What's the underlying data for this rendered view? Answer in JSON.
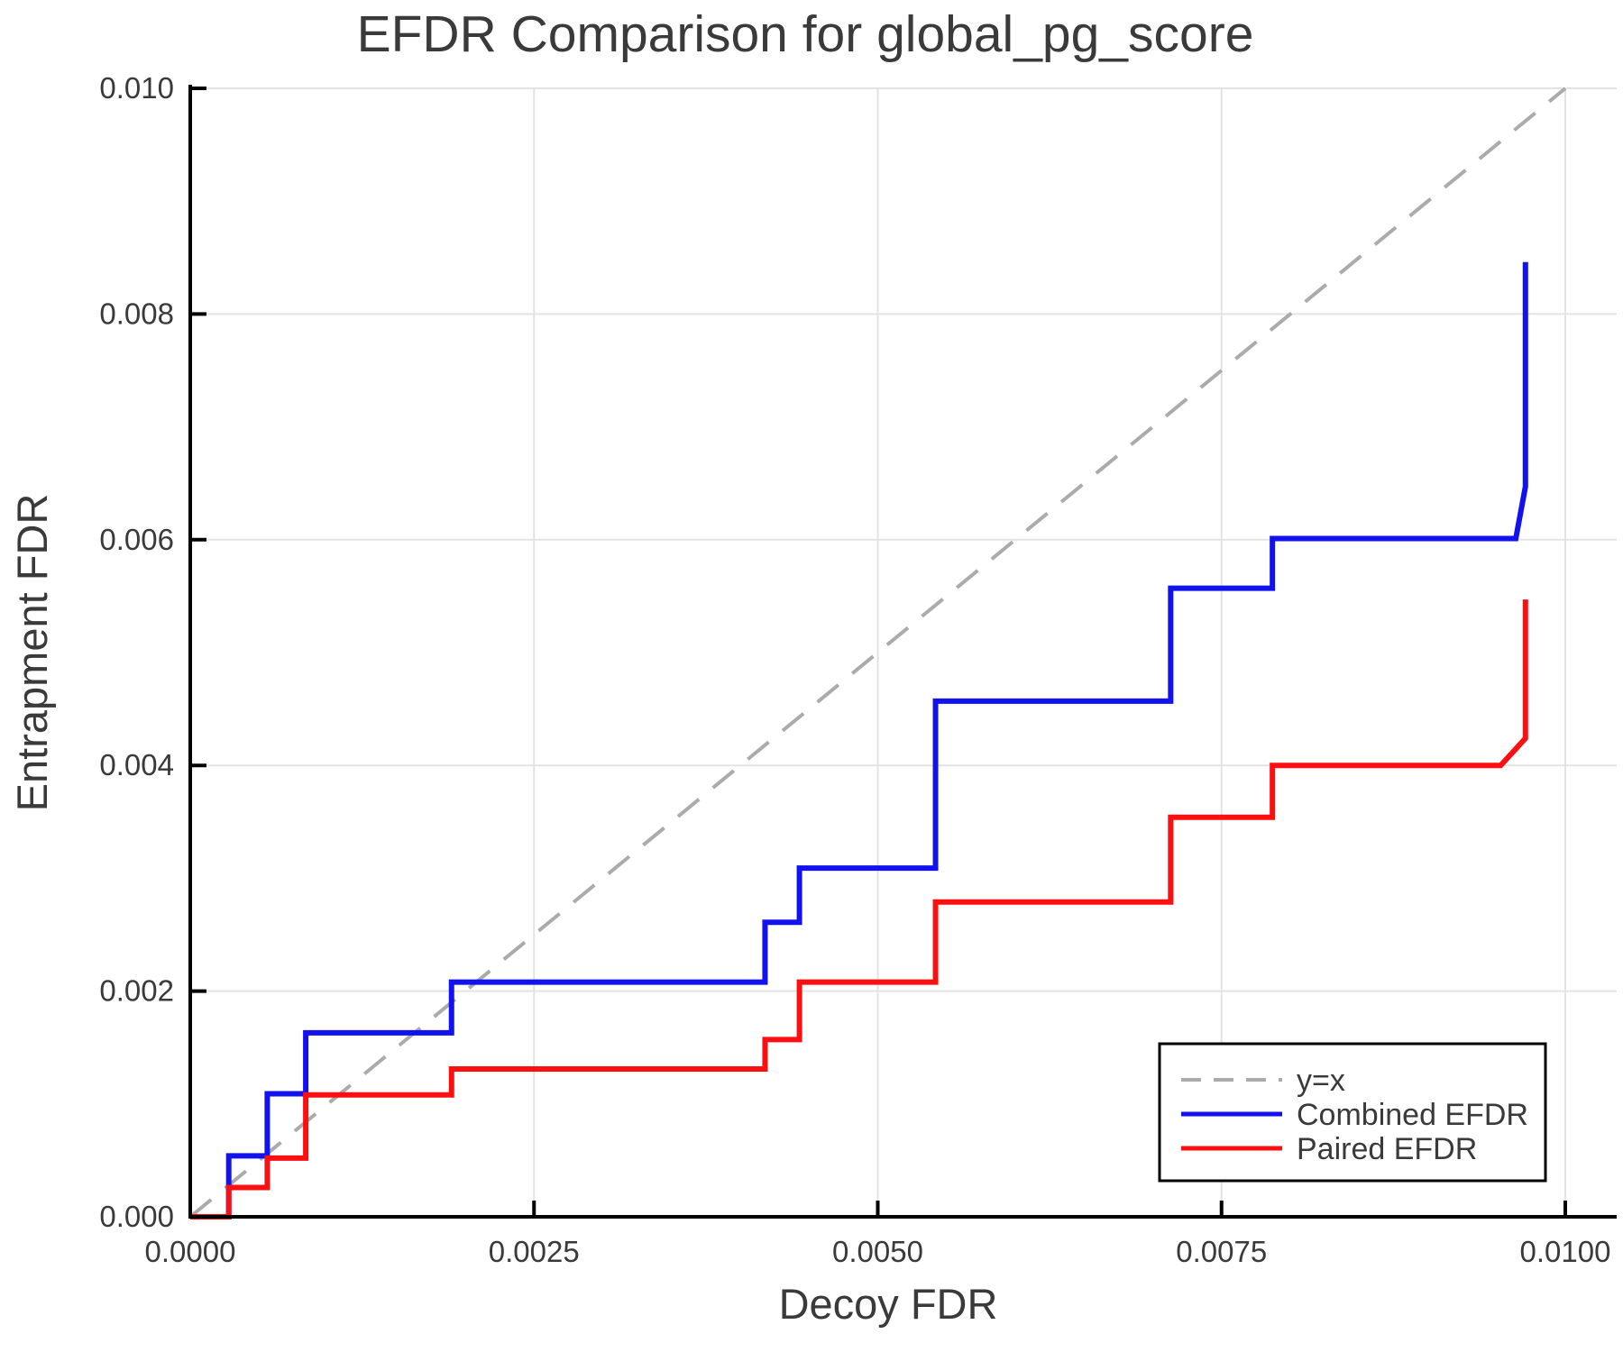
{
  "title": "EFDR Comparison for global_pg_score",
  "colors": {
    "background": "#ffffff",
    "axis": "#000000",
    "grid": "#e3e3e3",
    "text": "#3a3a3a",
    "reference": "#ababab",
    "combined": "#1212ee",
    "paired": "#fa1010",
    "legend_border": "#000000",
    "legend_fill": "#ffffff"
  },
  "axes": {
    "x": {
      "label": "Decoy FDR",
      "min": 0,
      "max": 0.01037,
      "ticks": [
        {
          "v": 0.0,
          "t": "0.0000"
        },
        {
          "v": 0.0025,
          "t": "0.0025"
        },
        {
          "v": 0.005,
          "t": "0.0050"
        },
        {
          "v": 0.0075,
          "t": "0.0075"
        },
        {
          "v": 0.01,
          "t": "0.0100"
        }
      ]
    },
    "y": {
      "label": "Entrapment FDR",
      "min": 0,
      "max": 0.01,
      "ticks": [
        {
          "v": 0.0,
          "t": "0.000"
        },
        {
          "v": 0.002,
          "t": "0.002"
        },
        {
          "v": 0.004,
          "t": "0.004"
        },
        {
          "v": 0.006,
          "t": "0.006"
        },
        {
          "v": 0.008,
          "t": "0.008"
        },
        {
          "v": 0.01,
          "t": "0.010"
        }
      ]
    }
  },
  "legend": {
    "entries": [
      {
        "label": "y=x",
        "color": "#ababab",
        "dashed": true
      },
      {
        "label": "Combined EFDR",
        "color": "#1212ee",
        "dashed": false
      },
      {
        "label": "Paired EFDR",
        "color": "#fa1010",
        "dashed": false
      }
    ]
  },
  "chart_data": {
    "type": "line",
    "title": "EFDR Comparison for global_pg_score",
    "xlabel": "Decoy FDR",
    "ylabel": "Entrapment FDR",
    "xlim": [
      0,
      0.01037
    ],
    "ylim": [
      0,
      0.01
    ],
    "grid": true,
    "legend_position": "bottom-right",
    "reference_line": {
      "name": "y=x",
      "points": [
        [
          0,
          0
        ],
        [
          0.01,
          0.01
        ]
      ]
    },
    "series": [
      {
        "name": "Combined EFDR",
        "color": "#1212ee",
        "points": [
          [
            0.0,
            0.0
          ],
          [
            0.00028,
            0.0
          ],
          [
            0.00028,
            0.00054
          ],
          [
            0.00056,
            0.00054
          ],
          [
            0.00056,
            0.00109
          ],
          [
            0.00084,
            0.00109
          ],
          [
            0.00084,
            0.00163
          ],
          [
            0.0019,
            0.00163
          ],
          [
            0.0019,
            0.00208
          ],
          [
            0.00418,
            0.00208
          ],
          [
            0.00418,
            0.00261
          ],
          [
            0.00443,
            0.00261
          ],
          [
            0.00443,
            0.00309
          ],
          [
            0.00542,
            0.00309
          ],
          [
            0.00542,
            0.00457
          ],
          [
            0.00713,
            0.00457
          ],
          [
            0.00713,
            0.00557
          ],
          [
            0.00787,
            0.00557
          ],
          [
            0.00787,
            0.00601
          ],
          [
            0.00964,
            0.00601
          ],
          [
            0.00971,
            0.00647
          ],
          [
            0.00971,
            0.00846
          ]
        ]
      },
      {
        "name": "Paired EFDR",
        "color": "#fa1010",
        "points": [
          [
            0.0,
            0.0
          ],
          [
            0.00028,
            0.0
          ],
          [
            0.00028,
            0.00026
          ],
          [
            0.00056,
            0.00026
          ],
          [
            0.00056,
            0.00052
          ],
          [
            0.00084,
            0.00052
          ],
          [
            0.00084,
            0.00108
          ],
          [
            0.0019,
            0.00108
          ],
          [
            0.0019,
            0.00131
          ],
          [
            0.00418,
            0.00131
          ],
          [
            0.00418,
            0.00157
          ],
          [
            0.00443,
            0.00157
          ],
          [
            0.00443,
            0.00208
          ],
          [
            0.00542,
            0.00208
          ],
          [
            0.00542,
            0.00279
          ],
          [
            0.00713,
            0.00279
          ],
          [
            0.00713,
            0.00354
          ],
          [
            0.00787,
            0.00354
          ],
          [
            0.00787,
            0.004
          ],
          [
            0.00953,
            0.004
          ],
          [
            0.00971,
            0.00424
          ],
          [
            0.00971,
            0.00547
          ]
        ]
      }
    ]
  }
}
